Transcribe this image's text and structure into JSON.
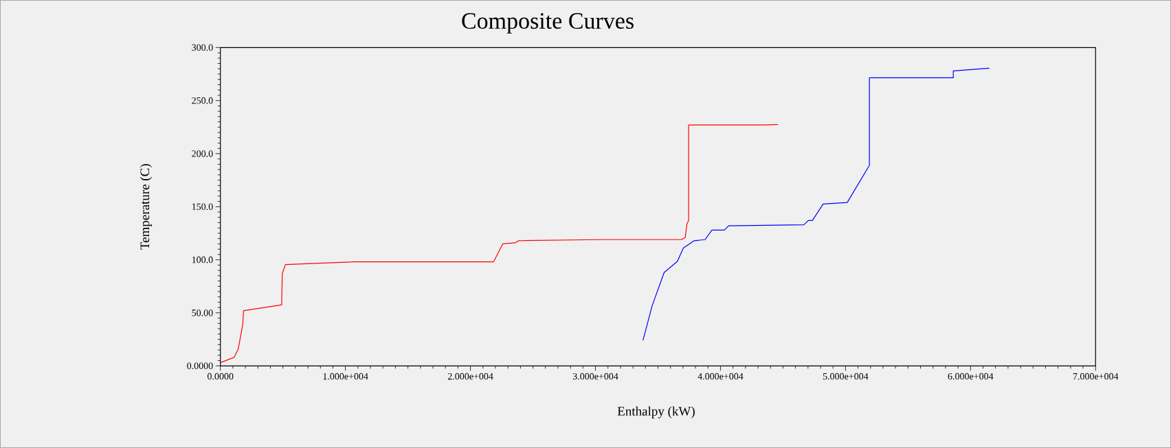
{
  "chart_data": {
    "type": "line",
    "title": "Composite Curves",
    "xlabel": "Enthalpy (kW)",
    "ylabel": "Temperature (C)",
    "xlim": [
      0,
      70000
    ],
    "ylim": [
      0,
      300
    ],
    "xticks": [
      {
        "value": 0,
        "label": "0.0000"
      },
      {
        "value": 10000,
        "label": "1.000e+004"
      },
      {
        "value": 20000,
        "label": "2.000e+004"
      },
      {
        "value": 30000,
        "label": "3.000e+004"
      },
      {
        "value": 40000,
        "label": "4.000e+004"
      },
      {
        "value": 50000,
        "label": "5.000e+004"
      },
      {
        "value": 60000,
        "label": "6.000e+004"
      },
      {
        "value": 70000,
        "label": "7.000e+004"
      }
    ],
    "yticks": [
      {
        "value": 0,
        "label": "0.0000"
      },
      {
        "value": 50,
        "label": "50.00"
      },
      {
        "value": 100,
        "label": "100.0"
      },
      {
        "value": 150,
        "label": "150.0"
      },
      {
        "value": 200,
        "label": "200.0"
      },
      {
        "value": 250,
        "label": "250.0"
      },
      {
        "value": 300,
        "label": "300.0"
      }
    ],
    "grid": false,
    "legend": false,
    "marker": "none",
    "line_style": "solid",
    "series": [
      {
        "color": "#ff0000",
        "x": [
          0,
          1100,
          1430,
          1790,
          1850,
          4900,
          4950,
          5200,
          10680,
          21850,
          22580,
          23590,
          23860,
          30360,
          36870,
          37180,
          37320,
          37450,
          37450,
          43590,
          44610
        ],
        "values": [
          3,
          8,
          16,
          39,
          52,
          57.5,
          87,
          95.5,
          98,
          98,
          115,
          116,
          118,
          119,
          119,
          121,
          134,
          137,
          227,
          227,
          227.5
        ]
      },
      {
        "color": "#0000ff",
        "x": [
          33800,
          34530,
          35490,
          36550,
          37030,
          37900,
          38770,
          39310,
          40310,
          40650,
          46670,
          47020,
          47350,
          48210,
          50140,
          51910,
          51910,
          58620,
          58620,
          61510
        ],
        "values": [
          24,
          56.5,
          88,
          98.5,
          111,
          118,
          119,
          128,
          128,
          132,
          133,
          137,
          137,
          152.5,
          154,
          189,
          271.5,
          271.5,
          278,
          280.5
        ]
      }
    ]
  }
}
